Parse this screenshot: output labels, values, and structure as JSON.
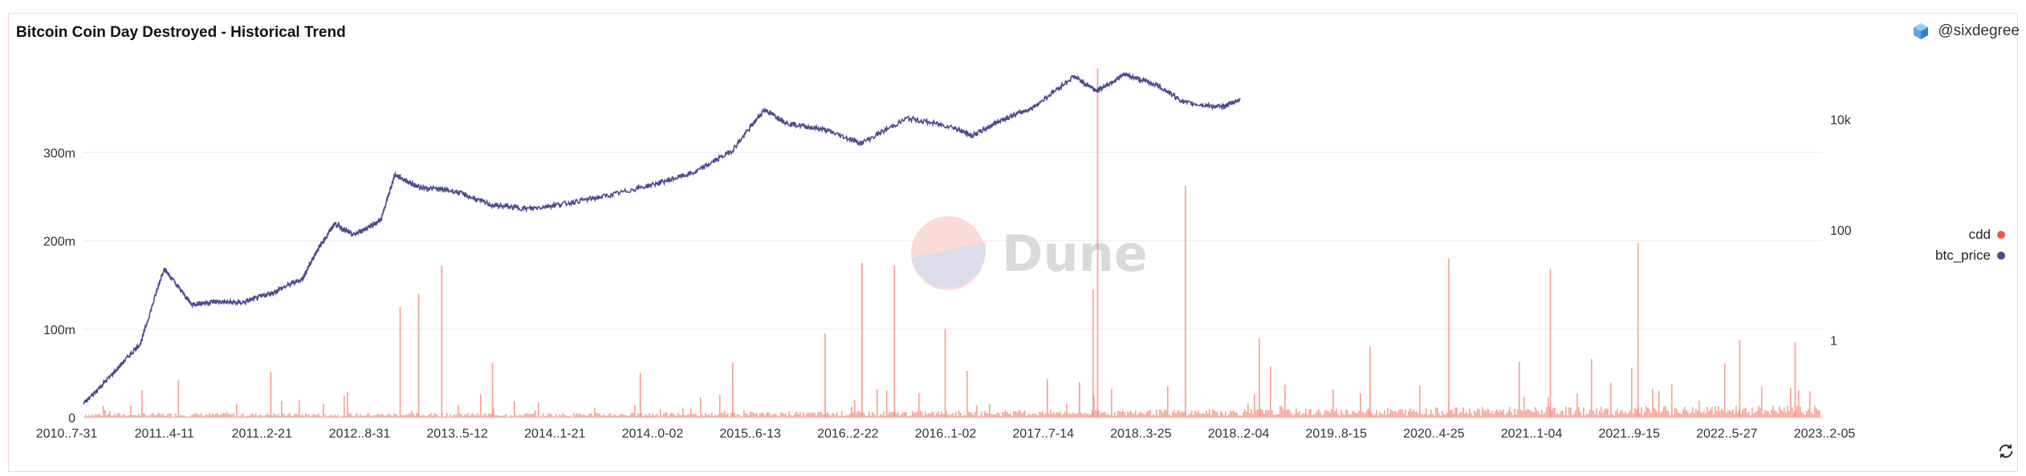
{
  "header": {
    "title": "Bitcoin Coin Day Destroyed - Historical Trend",
    "author": "@sixdegree"
  },
  "watermark": {
    "text": "Dune"
  },
  "colors": {
    "cdd": "#f4826c",
    "btc_price": "#4b4b8f",
    "grid": "#ececec",
    "frame": "#f2d3d8"
  },
  "chart_data": {
    "type": "bar+line",
    "title": "Bitcoin Coin Day Destroyed - Historical Trend",
    "x_ticks": [
      "2010..7-31",
      "2011..4-11",
      "2011..2-21",
      "2012..8-31",
      "2013..5-12",
      "2014..1-21",
      "2014..0-02",
      "2015..6-13",
      "2016..2-22",
      "2016..1-02",
      "2017..7-14",
      "2018..3-25",
      "2018..2-04",
      "2019..8-15",
      "2020..4-25",
      "2021..1-04",
      "2021..9-15",
      "2022..5-27",
      "2023..2-05"
    ],
    "y_left": {
      "ticks": [
        "0",
        "100m",
        "200m",
        "300m"
      ],
      "tick_values": [
        0,
        100000000,
        200000000,
        300000000
      ],
      "range": [
        0,
        400000000
      ]
    },
    "y_right": {
      "scale": "log",
      "ticks": [
        "1",
        "100",
        "10k"
      ],
      "tick_values": [
        1,
        100,
        10000
      ],
      "range": [
        0.04,
        100000
      ]
    },
    "series": [
      {
        "name": "cdd",
        "type": "bar",
        "axis": "left",
        "base_level": 4000000,
        "spikes": [
          {
            "date": "2011.6",
            "value": 42000000
          },
          {
            "date": "2012.6",
            "value": 52000000
          },
          {
            "date": "2014.0",
            "value": 125000000
          },
          {
            "date": "2014.2",
            "value": 140000000
          },
          {
            "date": "2014.45",
            "value": 172000000
          },
          {
            "date": "2015.0",
            "value": 62000000
          },
          {
            "date": "2016.6",
            "value": 50000000
          },
          {
            "date": "2017.6",
            "value": 62000000
          },
          {
            "date": "2018.6",
            "value": 95000000
          },
          {
            "date": "2019.0",
            "value": 175000000
          },
          {
            "date": "2019.35",
            "value": 172000000
          },
          {
            "date": "2019.9",
            "value": 100000000
          },
          {
            "date": "2021.5",
            "value": 145000000
          },
          {
            "date": "2021.55",
            "value": 395000000
          },
          {
            "date": "2022.5",
            "value": 262000000
          },
          {
            "date": "2023.3",
            "value": 90000000
          },
          {
            "date": "2024.5",
            "value": 80000000
          },
          {
            "date": "2025.35",
            "value": 180000000
          },
          {
            "date": "2026.45",
            "value": 168000000
          },
          {
            "date": "2027.4",
            "value": 198000000
          },
          {
            "date": "2028.5",
            "value": 88000000
          },
          {
            "date": "2029.1",
            "value": 85000000
          }
        ]
      },
      {
        "name": "btc_price",
        "type": "line",
        "axis": "right",
        "points": [
          {
            "date": 2010.58,
            "value": 0.07
          },
          {
            "date": 2010.9,
            "value": 0.25
          },
          {
            "date": 2011.2,
            "value": 0.9
          },
          {
            "date": 2011.45,
            "value": 20
          },
          {
            "date": 2011.75,
            "value": 4.5
          },
          {
            "date": 2012.0,
            "value": 5
          },
          {
            "date": 2012.3,
            "value": 4.8
          },
          {
            "date": 2012.6,
            "value": 7
          },
          {
            "date": 2012.95,
            "value": 13
          },
          {
            "date": 2013.1,
            "value": 40
          },
          {
            "date": 2013.3,
            "value": 130
          },
          {
            "date": 2013.5,
            "value": 80
          },
          {
            "date": 2013.8,
            "value": 150
          },
          {
            "date": 2013.95,
            "value": 1000
          },
          {
            "date": 2014.2,
            "value": 600
          },
          {
            "date": 2014.6,
            "value": 500
          },
          {
            "date": 2015.0,
            "value": 280
          },
          {
            "date": 2015.4,
            "value": 240
          },
          {
            "date": 2015.8,
            "value": 300
          },
          {
            "date": 2016.3,
            "value": 430
          },
          {
            "date": 2016.8,
            "value": 700
          },
          {
            "date": 2017.2,
            "value": 1100
          },
          {
            "date": 2017.6,
            "value": 2700
          },
          {
            "date": 2017.95,
            "value": 15000
          },
          {
            "date": 2018.2,
            "value": 8500
          },
          {
            "date": 2018.6,
            "value": 6500
          },
          {
            "date": 2019.0,
            "value": 3700
          },
          {
            "date": 2019.5,
            "value": 10500
          },
          {
            "date": 2020.0,
            "value": 7200
          },
          {
            "date": 2020.2,
            "value": 5000
          },
          {
            "date": 2020.5,
            "value": 9500
          },
          {
            "date": 2020.85,
            "value": 16000
          },
          {
            "date": 2021.3,
            "value": 60000
          },
          {
            "date": 2021.55,
            "value": 33000
          },
          {
            "date": 2021.85,
            "value": 65000
          },
          {
            "date": 2022.2,
            "value": 42000
          },
          {
            "date": 2022.5,
            "value": 20000
          },
          {
            "date": 2022.9,
            "value": 16500
          },
          {
            "date": 2023.1,
            "value": 23000
          }
        ]
      }
    ],
    "legend": {
      "position": "right",
      "entries": [
        "cdd",
        "btc_price"
      ]
    },
    "grid": true
  }
}
